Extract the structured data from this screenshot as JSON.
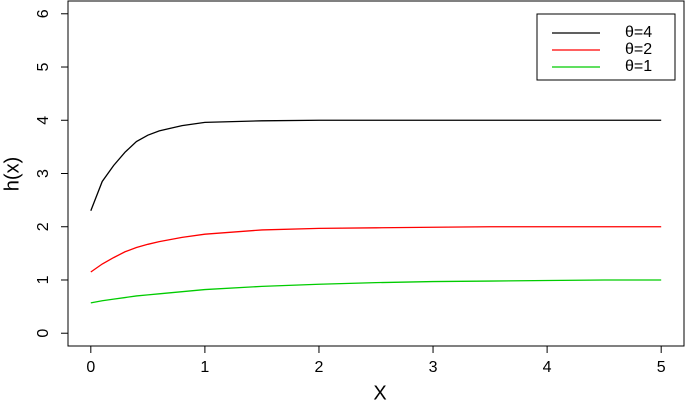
{
  "chart_data": {
    "type": "line",
    "x_label": "X",
    "y_label": "h(x)",
    "x": [
      0,
      0.1,
      0.2,
      0.3,
      0.4,
      0.5,
      0.6,
      0.8,
      1,
      1.5,
      2,
      2.5,
      3,
      3.5,
      4,
      4.5,
      5
    ],
    "series": [
      {
        "name": "θ=4",
        "color": "#000000",
        "values": [
          2.3,
          2.85,
          3.15,
          3.4,
          3.6,
          3.72,
          3.8,
          3.9,
          3.96,
          3.99,
          4.0,
          4.0,
          4.0,
          4.0,
          4.0,
          4.0,
          4.0
        ]
      },
      {
        "name": "θ=2",
        "color": "#ff0000",
        "values": [
          1.15,
          1.3,
          1.42,
          1.53,
          1.61,
          1.67,
          1.72,
          1.8,
          1.86,
          1.94,
          1.97,
          1.98,
          1.99,
          2.0,
          2.0,
          2.0,
          2.0
        ]
      },
      {
        "name": "θ=1",
        "color": "#00cc00",
        "values": [
          0.57,
          0.61,
          0.64,
          0.67,
          0.7,
          0.72,
          0.74,
          0.78,
          0.82,
          0.88,
          0.92,
          0.95,
          0.97,
          0.98,
          0.99,
          1.0,
          1.0
        ]
      }
    ],
    "xlim": [
      -0.2,
      5.2
    ],
    "ylim": [
      -0.24,
      6.24
    ],
    "xticks": [
      0,
      1,
      2,
      3,
      4,
      5
    ],
    "yticks": [
      0,
      1,
      2,
      3,
      4,
      5,
      6
    ],
    "legend": "top-right",
    "grid": false
  }
}
